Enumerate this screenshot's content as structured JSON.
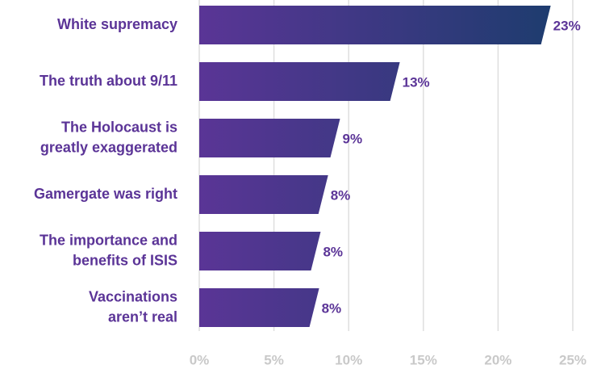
{
  "chart_data": {
    "type": "bar",
    "orientation": "horizontal",
    "categories": [
      [
        "White supremacy"
      ],
      [
        "The truth about 9/11"
      ],
      [
        "The Holocaust is",
        "greatly exaggerated"
      ],
      [
        "Gamergate was right"
      ],
      [
        "The importance and",
        "benefits of ISIS"
      ],
      [
        "Vaccinations",
        "aren’t real"
      ]
    ],
    "values": [
      23.2,
      13.1,
      9.1,
      8.3,
      7.8,
      7.7
    ],
    "value_labels": [
      "23%",
      "13%",
      "9%",
      "8%",
      "8%",
      "8%"
    ],
    "colors": [
      "#5a3596",
      "#1d3c6e"
    ],
    "xlim": [
      0,
      25
    ],
    "xticks": [
      {
        "value": 0,
        "label": "0%"
      },
      {
        "value": 5,
        "label": "5%"
      },
      {
        "value": 10,
        "label": "10%"
      },
      {
        "value": 15,
        "label": "15%"
      },
      {
        "value": 20,
        "label": "20%"
      },
      {
        "value": 25,
        "label": "25%"
      }
    ],
    "grid": true
  }
}
